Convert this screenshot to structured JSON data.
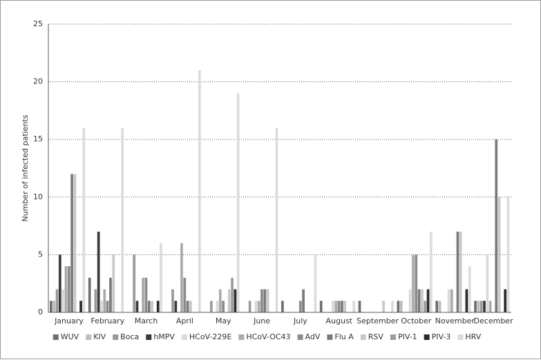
{
  "chart_data": {
    "type": "bar",
    "y_label": "Number of infected patients",
    "categories": [
      "January",
      "February",
      "March",
      "April",
      "May",
      "June",
      "July",
      "August",
      "September",
      "October",
      "November",
      "December"
    ],
    "series": [
      {
        "name": "WUV",
        "color": "#6f6f6f",
        "values": [
          1,
          3,
          0,
          0,
          0,
          0,
          1,
          1,
          1,
          1,
          1,
          1
        ]
      },
      {
        "name": "KIV",
        "color": "#bdbdbd",
        "values": [
          1,
          0,
          0,
          0,
          0,
          0,
          0,
          0,
          0,
          1,
          1,
          1
        ]
      },
      {
        "name": "Boca",
        "color": "#9a9a9a",
        "values": [
          2,
          2,
          5,
          2,
          1,
          1,
          0,
          0,
          0,
          0,
          0,
          1
        ]
      },
      {
        "name": "hMPV",
        "color": "#3a3a3a",
        "values": [
          5,
          7,
          1,
          1,
          0,
          0,
          0,
          0,
          0,
          0,
          0,
          1
        ]
      },
      {
        "name": "HCoV-229E",
        "color": "#dadada",
        "values": [
          2,
          1,
          0,
          0,
          1,
          1,
          0,
          1,
          0,
          2,
          2,
          5
        ]
      },
      {
        "name": "HCoV-OC43",
        "color": "#aaaaaa",
        "values": [
          4,
          2,
          3,
          6,
          2,
          1,
          0,
          1,
          0,
          5,
          2,
          1
        ]
      },
      {
        "name": "AdV",
        "color": "#8a8a8a",
        "values": [
          4,
          1,
          3,
          3,
          1,
          2,
          1,
          1,
          0,
          5,
          0,
          0
        ]
      },
      {
        "name": "Flu A",
        "color": "#7a7a7a",
        "values": [
          12,
          3,
          1,
          1,
          0,
          2,
          2,
          1,
          0,
          2,
          7,
          15
        ]
      },
      {
        "name": "RSV",
        "color": "#c8c8c8",
        "values": [
          12,
          5,
          1,
          1,
          2,
          2,
          0,
          1,
          1,
          2,
          7,
          10
        ]
      },
      {
        "name": "PIV-1",
        "color": "#9c9c9c",
        "values": [
          0,
          0,
          0,
          0,
          3,
          0,
          0,
          0,
          0,
          1,
          0,
          0
        ]
      },
      {
        "name": "PIV-3",
        "color": "#2a2a2a",
        "values": [
          1,
          0,
          1,
          0,
          2,
          0,
          0,
          0,
          0,
          2,
          2,
          2
        ]
      },
      {
        "name": "HRV",
        "color": "#dcdcdc",
        "values": [
          16,
          16,
          6,
          21,
          19,
          16,
          5,
          1,
          1,
          7,
          4,
          10
        ]
      }
    ],
    "ylim": [
      0,
      25
    ],
    "yticks": [
      0,
      5,
      10,
      15,
      20,
      25
    ],
    "grid": true,
    "legend": "bottom"
  }
}
